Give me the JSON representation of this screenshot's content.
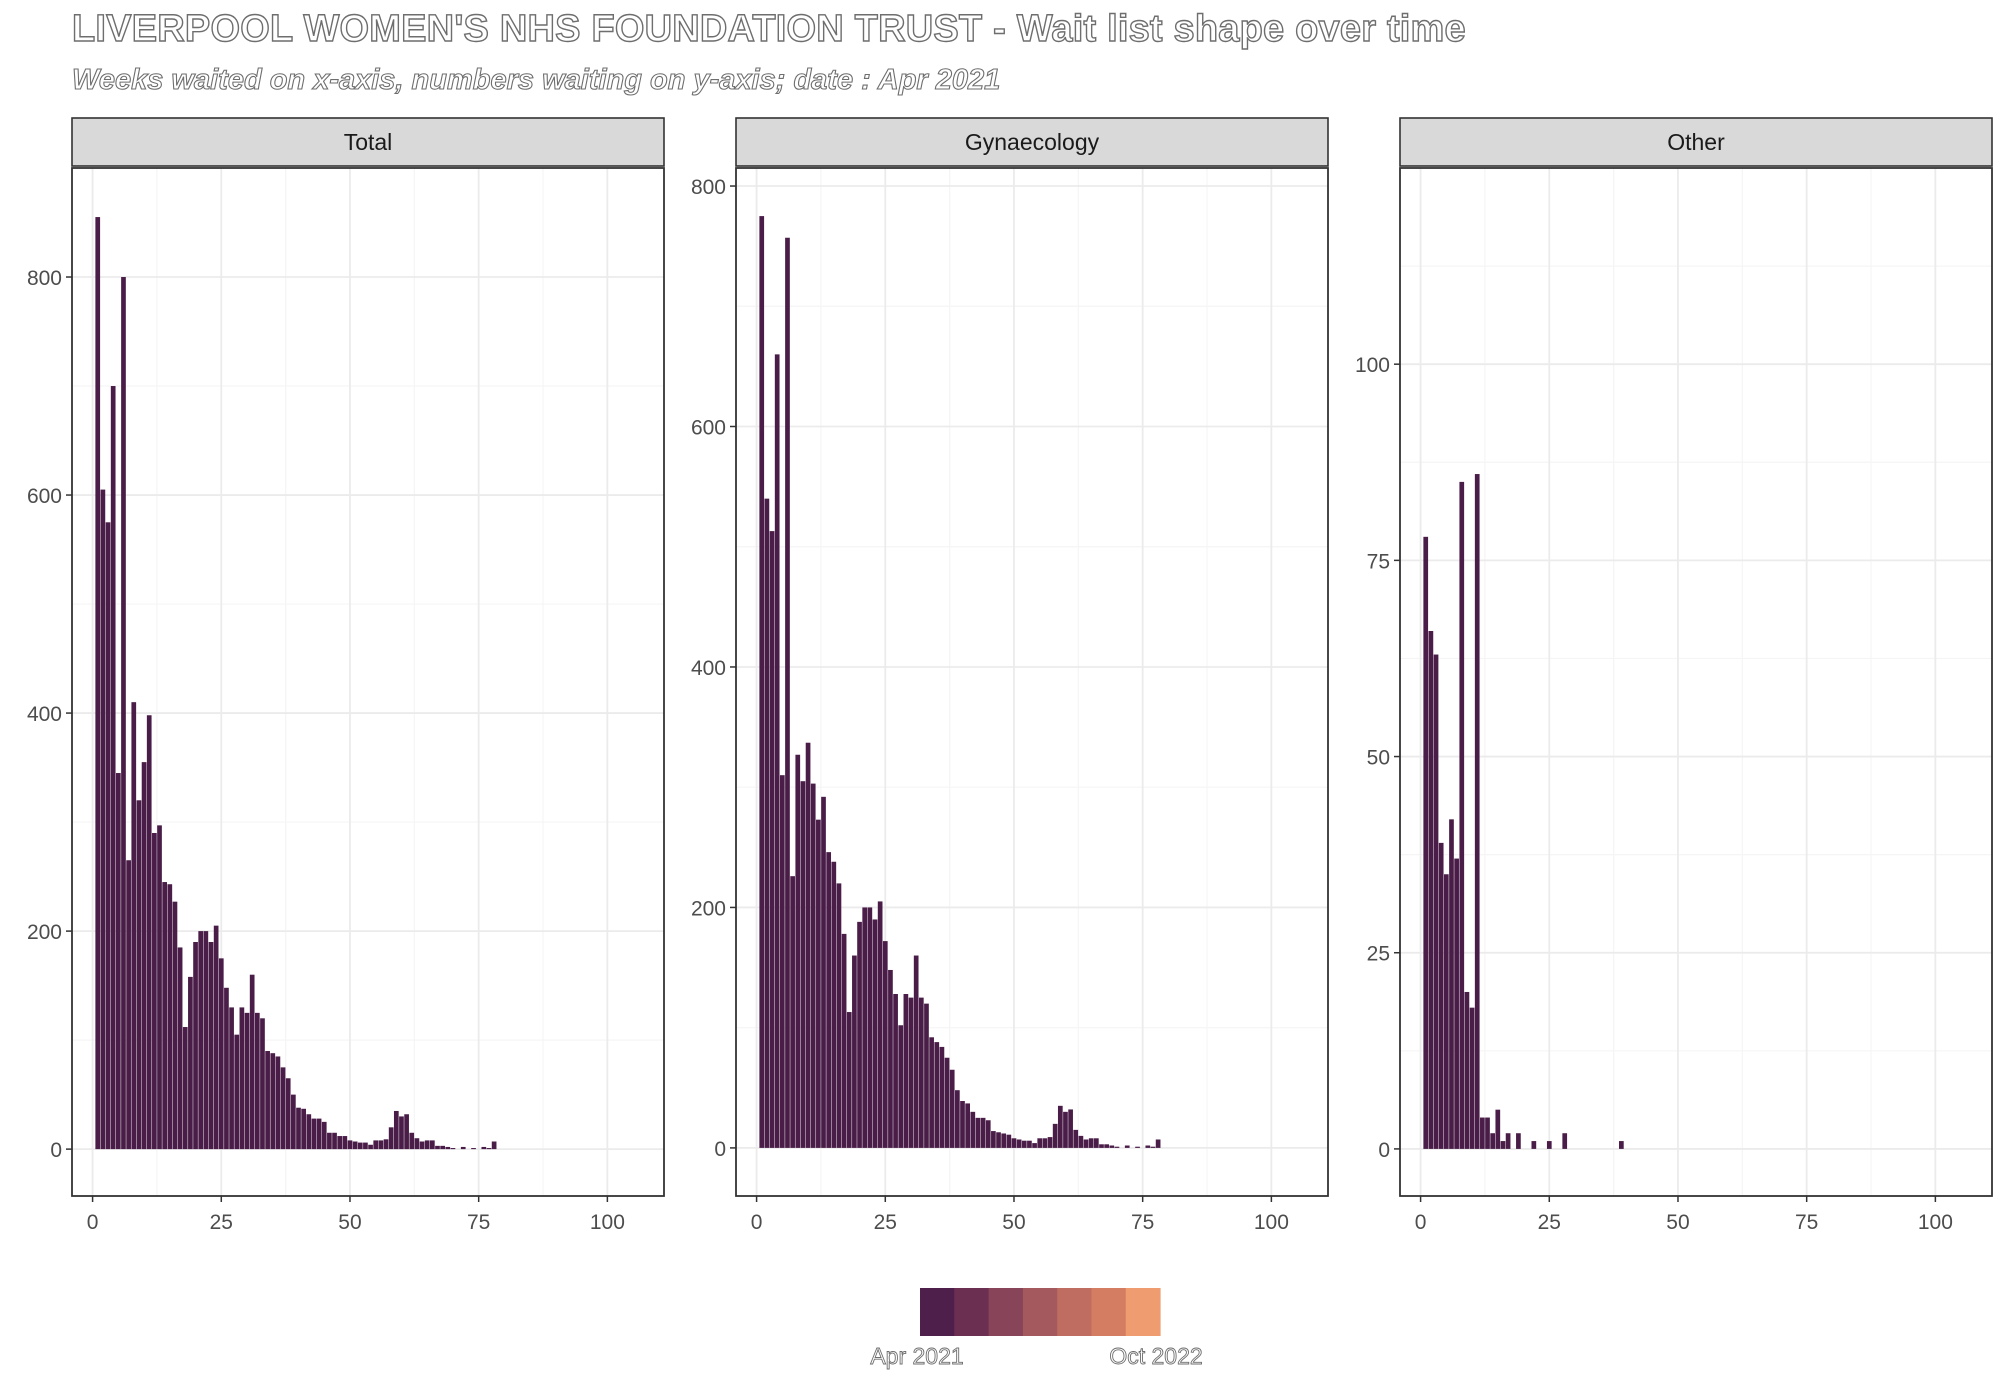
{
  "title": "LIVERPOOL WOMEN'S NHS FOUNDATION TRUST - Wait list shape over time",
  "subtitle": "Weeks waited on x-axis, numbers waiting on y-axis; date : Apr 2021",
  "colors": {
    "bar": "#4a1d48",
    "strip_fill": "#d9d9d9",
    "grid_major": "#ebebeb",
    "grid_minor": "#f5f5f5",
    "legend_ramp": [
      "#4e1f4b",
      "#6b2f52",
      "#884459",
      "#a3595d",
      "#be6d60",
      "#d57d63",
      "#ee9c70"
    ]
  },
  "legend": {
    "start_label": "Apr 2021",
    "end_label": "Oct 2022"
  },
  "chart_data": [
    {
      "type": "bar",
      "panel": "Total",
      "xlim": [
        -4,
        111
      ],
      "ylim": [
        -43,
        900
      ],
      "x_ticks": [
        0,
        25,
        50,
        75,
        100
      ],
      "y_ticks": [
        0,
        200,
        400,
        600,
        800
      ],
      "x": [
        1,
        2,
        3,
        4,
        5,
        6,
        7,
        8,
        9,
        10,
        11,
        12,
        13,
        14,
        15,
        16,
        17,
        18,
        19,
        20,
        21,
        22,
        23,
        24,
        25,
        26,
        27,
        28,
        29,
        30,
        31,
        32,
        33,
        34,
        35,
        36,
        37,
        38,
        39,
        40,
        41,
        42,
        43,
        44,
        45,
        46,
        47,
        48,
        49,
        50,
        51,
        52,
        53,
        54,
        55,
        56,
        57,
        58,
        59,
        60,
        61,
        62,
        63,
        64,
        65,
        66,
        67,
        68,
        69,
        70,
        72,
        74,
        76,
        77,
        78
      ],
      "values": [
        855,
        605,
        575,
        700,
        345,
        800,
        265,
        410,
        320,
        355,
        398,
        290,
        297,
        245,
        243,
        227,
        185,
        112,
        158,
        190,
        200,
        200,
        190,
        205,
        175,
        148,
        130,
        105,
        130,
        125,
        160,
        125,
        120,
        90,
        88,
        85,
        75,
        65,
        50,
        38,
        37,
        32,
        28,
        28,
        25,
        15,
        15,
        12,
        12,
        8,
        7,
        6,
        6,
        4,
        8,
        8,
        9,
        20,
        35,
        30,
        32,
        15,
        10,
        7,
        8,
        8,
        3,
        3,
        2,
        1,
        2,
        1,
        2,
        1,
        7
      ],
      "legend_color_index": 0
    },
    {
      "type": "bar",
      "panel": "Gynaecology",
      "xlim": [
        -4,
        111
      ],
      "ylim": [
        -40,
        815
      ],
      "x_ticks": [
        0,
        25,
        50,
        75,
        100
      ],
      "y_ticks": [
        0,
        200,
        400,
        600,
        800
      ],
      "x": [
        1,
        2,
        3,
        4,
        5,
        6,
        7,
        8,
        9,
        10,
        11,
        12,
        13,
        14,
        15,
        16,
        17,
        18,
        19,
        20,
        21,
        22,
        23,
        24,
        25,
        26,
        27,
        28,
        29,
        30,
        31,
        32,
        33,
        34,
        35,
        36,
        37,
        38,
        39,
        40,
        41,
        42,
        43,
        44,
        45,
        46,
        47,
        48,
        49,
        50,
        51,
        52,
        53,
        54,
        55,
        56,
        57,
        58,
        59,
        60,
        61,
        62,
        63,
        64,
        65,
        66,
        67,
        68,
        69,
        70,
        72,
        74,
        76,
        77,
        78
      ],
      "values": [
        775,
        540,
        513,
        660,
        310,
        757,
        226,
        327,
        305,
        337,
        303,
        273,
        292,
        246,
        238,
        220,
        178,
        113,
        160,
        188,
        200,
        200,
        190,
        205,
        172,
        148,
        128,
        102,
        128,
        125,
        160,
        125,
        120,
        92,
        88,
        84,
        75,
        65,
        48,
        39,
        37,
        30,
        25,
        25,
        23,
        14,
        13,
        12,
        11,
        8,
        7,
        6,
        6,
        4,
        8,
        8,
        9,
        20,
        35,
        30,
        32,
        15,
        10,
        7,
        8,
        8,
        3,
        3,
        2,
        1,
        2,
        1,
        2,
        1,
        7
      ],
      "legend_color_index": 0
    },
    {
      "type": "bar",
      "panel": "Other",
      "xlim": [
        -4,
        111
      ],
      "ylim": [
        -6,
        125
      ],
      "x_ticks": [
        0,
        25,
        50,
        75,
        100
      ],
      "y_ticks": [
        0,
        25,
        50,
        75,
        100
      ],
      "x": [
        1,
        2,
        3,
        4,
        5,
        6,
        7,
        8,
        9,
        10,
        11,
        12,
        13,
        14,
        15,
        16,
        17,
        18,
        19,
        20,
        22,
        25,
        28,
        39
      ],
      "values": [
        78,
        66,
        63,
        39,
        35,
        42,
        37,
        85,
        20,
        18,
        86,
        4,
        4,
        2,
        5,
        1,
        2,
        0,
        2,
        0,
        1,
        1,
        2,
        1
      ],
      "legend_color_index": 0
    }
  ]
}
